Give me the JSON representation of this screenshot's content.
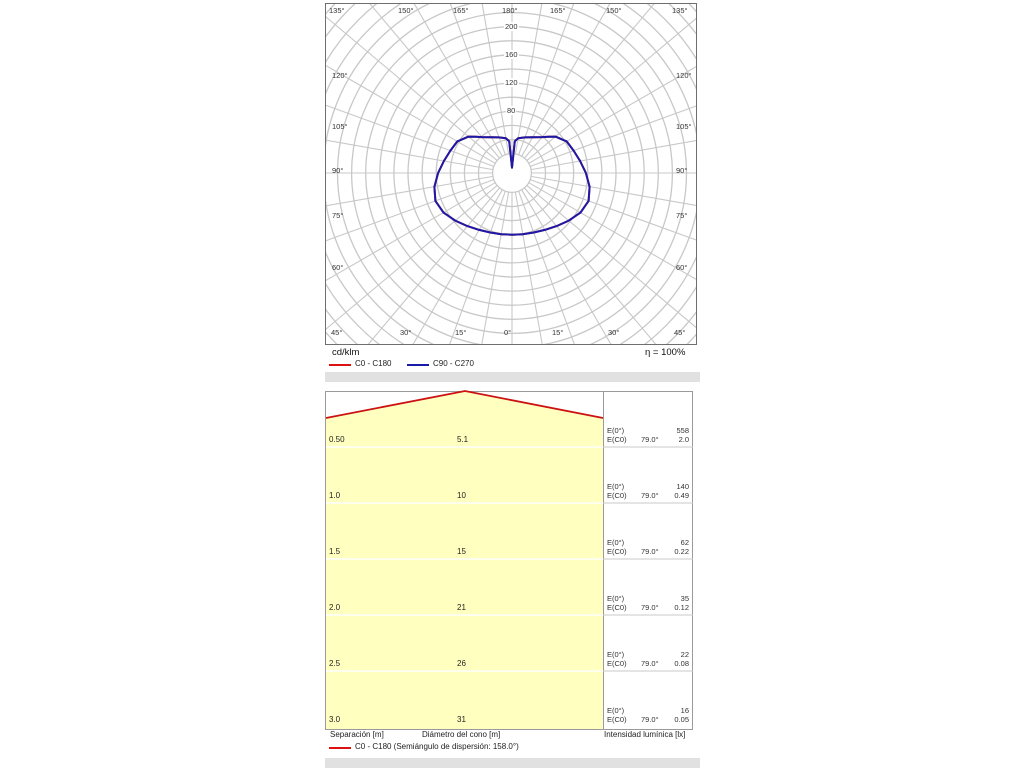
{
  "colors": {
    "c0_c180": "#dd1111",
    "c90_c270": "#1a1aa8",
    "grid": "#c8c8c8",
    "cone_fill": "#ffffc0",
    "panel_border": "#6f6f6f"
  },
  "chart_data": [
    {
      "type": "polar",
      "unit_label": "cd/klm",
      "efficiency_label": "η = 100%",
      "angle_labels": {
        "top": [
          "135°",
          "150°",
          "165°",
          "180°",
          "165°",
          "150°",
          "135°"
        ],
        "bottom": [
          "45°",
          "30°",
          "15°",
          "0°",
          "15°",
          "30°",
          "45°"
        ],
        "left": [
          "120°",
          "105°",
          "90°",
          "75°",
          "60°"
        ],
        "right": [
          "120°",
          "105°",
          "90°",
          "75°",
          "60°"
        ]
      },
      "radial_ticks": [
        80,
        120,
        160,
        200
      ],
      "radial_ring_step": 20,
      "angle_step_deg": 10,
      "series": [
        {
          "name": "C0 - C180",
          "color": "#dd1111",
          "angles_deg": [
            0,
            10,
            20,
            30,
            40,
            50,
            60,
            70,
            80,
            90,
            100,
            110,
            120,
            130,
            135,
            140,
            150,
            160,
            170,
            175,
            180
          ],
          "values": [
            80,
            80.6,
            82.3,
            85.6,
            90.8,
            97.6,
            104.7,
            108.1,
            104.3,
            97.3,
            90.6,
            85.5,
            82,
            72.8,
            65.1,
            58.9,
            50.9,
            46.2,
            42.4,
            37.8,
            0
          ]
        },
        {
          "name": "C90 - C270",
          "color": "#1a1aa8",
          "angles_deg": [
            0,
            10,
            20,
            30,
            40,
            50,
            60,
            70,
            80,
            90,
            100,
            110,
            120,
            130,
            135,
            140,
            150,
            160,
            170,
            175,
            180
          ],
          "values": [
            80,
            80.6,
            82.3,
            85.6,
            90.8,
            97.6,
            104.7,
            108.1,
            104.3,
            97.3,
            90.6,
            85.5,
            82,
            72.8,
            65.1,
            58.9,
            50.9,
            46.2,
            42.4,
            37.8,
            0
          ]
        }
      ]
    },
    {
      "type": "table",
      "columns": [
        "Separación [m]",
        "Diámetro del cono [m]",
        "Intensidad lumínica [lx]"
      ],
      "legend": "C0 - C180 (Semiángulo de dispersión: 158.0°)",
      "rows": [
        {
          "separation": "0.50",
          "diameter": "5.1",
          "e0_label": "E(0°)",
          "e0": "558",
          "ec0_label": "E(C0)",
          "angle": "79.0°",
          "ec0": "2.0"
        },
        {
          "separation": "1.0",
          "diameter": "10",
          "e0_label": "E(0°)",
          "e0": "140",
          "ec0_label": "E(C0)",
          "angle": "79.0°",
          "ec0": "0.49"
        },
        {
          "separation": "1.5",
          "diameter": "15",
          "e0_label": "E(0°)",
          "e0": "62",
          "ec0_label": "E(C0)",
          "angle": "79.0°",
          "ec0": "0.22"
        },
        {
          "separation": "2.0",
          "diameter": "21",
          "e0_label": "E(0°)",
          "e0": "35",
          "ec0_label": "E(C0)",
          "angle": "79.0°",
          "ec0": "0.12"
        },
        {
          "separation": "2.5",
          "diameter": "26",
          "e0_label": "E(0°)",
          "e0": "22",
          "ec0_label": "E(C0)",
          "angle": "79.0°",
          "ec0": "0.08"
        },
        {
          "separation": "3.0",
          "diameter": "31",
          "e0_label": "E(0°)",
          "e0": "16",
          "ec0_label": "E(C0)",
          "angle": "79.0°",
          "ec0": "0.05"
        }
      ]
    }
  ]
}
